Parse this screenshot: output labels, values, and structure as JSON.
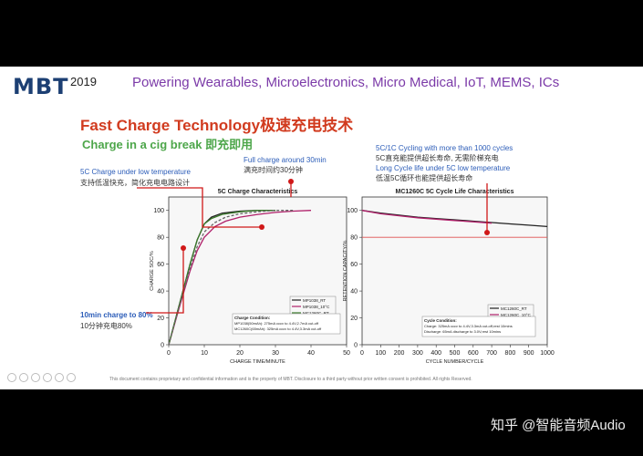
{
  "header": {
    "logo": "MBT",
    "year": "2019",
    "tagline": "Powering Wearables, Microelectronics, Micro Medical, IoT, MEMS, ICs"
  },
  "title": "Fast Charge Technology极速充电技术",
  "subtitle": "Charge in a cig break 即充即用",
  "notes": {
    "full_charge_en": "Full charge around 30min",
    "full_charge_cn": "满充时间约30分钟",
    "low_temp_en": "5C Charge under low temperature",
    "low_temp_cn": "支持低温快充，简化充电电路设计",
    "ten_min_en": "10min charge to 80%",
    "ten_min_cn": "10分钟充电80%",
    "cycling_en": "5C/1C Cycling with more than 1000 cycles",
    "cycling_cn": "5C直充能提供超长寿命, 无需阶梯充电",
    "long_cycle_en": "Long Cycle life under 5C low temperature",
    "long_cycle_cn": "低温5C循环也能提供超长寿命"
  },
  "footer": "This document contains proprietary and confidential information and is the property of MBT. Disclosure to a third party without prior written consent is prohibited. All rights Reserved.",
  "watermark": "知乎 @智能音频Audio",
  "chart_data": [
    {
      "type": "line",
      "title": "5C Charge Characteristics",
      "xlabel": "CHARGE TIME/MINUTE",
      "ylabel": "CHARGE SOC/%",
      "xlim": [
        0,
        50
      ],
      "ylim": [
        0,
        110
      ],
      "xticks": [
        "0",
        "10",
        "20",
        "30",
        "40",
        "50"
      ],
      "yticks": [
        "0",
        "20",
        "40",
        "60",
        "80",
        "100"
      ],
      "series": [
        {
          "name": "MP1038_RT",
          "color": "#222222",
          "x": [
            0,
            3,
            6,
            8,
            10,
            12,
            15,
            20,
            25,
            30
          ],
          "values": [
            0,
            30,
            60,
            78,
            90,
            95,
            98,
            99.5,
            100,
            100
          ]
        },
        {
          "name": "MP1038_10°C",
          "color": "#b0206a",
          "x": [
            0,
            3,
            6,
            8,
            10,
            13,
            16,
            20,
            25,
            30,
            35,
            40
          ],
          "values": [
            0,
            28,
            55,
            70,
            80,
            88,
            92,
            95,
            97,
            98.5,
            99.5,
            100
          ]
        },
        {
          "name": "MC1260C_RT",
          "color": "#3a7a2a",
          "x": [
            0,
            3,
            6,
            8,
            10,
            12,
            15,
            20,
            25,
            30
          ],
          "values": [
            0,
            30,
            60,
            78,
            90,
            94,
            97,
            99,
            100,
            100
          ]
        },
        {
          "name": "MC1260C_10°C",
          "color": "#666666",
          "x": [
            0,
            3,
            6,
            8,
            10,
            13,
            16,
            20,
            25,
            30,
            35
          ],
          "values": [
            0,
            29,
            57,
            73,
            84,
            91,
            95,
            97.5,
            99,
            100,
            100
          ]
        }
      ],
      "condition_title": "Charge Condition:",
      "condition_lines": [
        "MP1038(50mAh): 275mA cccv to 4.4V,2.7mA cut-off",
        "MC1260C(65mAh): 325mA cccv to 4.4V,3.3mA cut-off"
      ]
    },
    {
      "type": "line",
      "title": "MC1260C 5C Cycle Life Characteristics",
      "xlabel": "CYCLE NUMBER/CYCLE",
      "ylabel": "RETENTION CAPACITY/%",
      "xlim": [
        0,
        1000
      ],
      "ylim": [
        0,
        110
      ],
      "xticks": [
        "0",
        "100",
        "200",
        "300",
        "400",
        "500",
        "600",
        "700",
        "800",
        "900",
        "1000"
      ],
      "yticks": [
        "0",
        "20",
        "40",
        "60",
        "80",
        "100"
      ],
      "reference_line": 80,
      "series": [
        {
          "name": "MC1260C_RT",
          "color": "#222222",
          "x": [
            0,
            100,
            200,
            300,
            400,
            500,
            600,
            700,
            800,
            900,
            1000
          ],
          "values": [
            100,
            98,
            96.5,
            95,
            94,
            93,
            92,
            91,
            90,
            89,
            88
          ]
        },
        {
          "name": "MC1260C_10°C",
          "color": "#b0206a",
          "x": [
            0,
            100,
            200,
            300,
            400,
            500,
            600,
            700
          ],
          "values": [
            100,
            97.5,
            96,
            94.5,
            93.5,
            92.5,
            91.5,
            90.5
          ]
        }
      ],
      "condition_title": "Cycle Condition:",
      "condition_lines": [
        "Charge: 325mA cccv to 4.4V,3.3mA cut-off,rest 10mins",
        "Discharge: 65mA discharge to 3.0V,rest 10mins"
      ]
    }
  ]
}
